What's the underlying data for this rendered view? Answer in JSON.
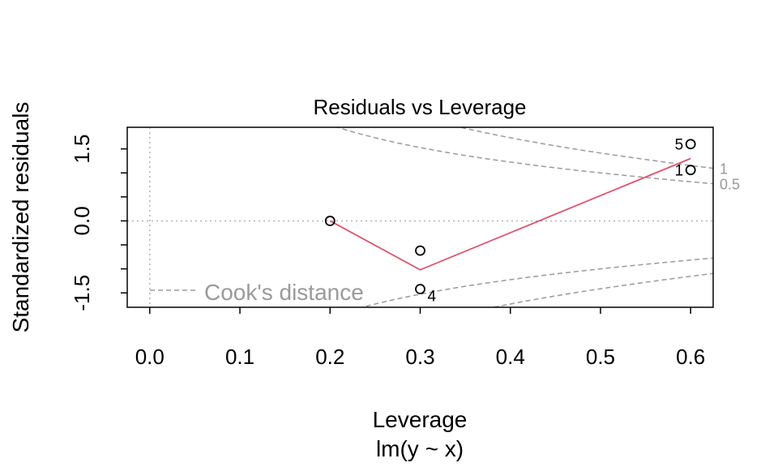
{
  "chart_data": {
    "type": "scatter",
    "title": "Residuals vs Leverage",
    "xlabel": "Leverage",
    "subtitle": "lm(y ~ x)",
    "ylabel": "Standardized residuals",
    "xlim": [
      -0.025,
      0.625
    ],
    "ylim": [
      -1.8,
      1.95
    ],
    "x_ticks": [
      "0.0",
      "0.1",
      "0.2",
      "0.3",
      "0.4",
      "0.5",
      "0.6"
    ],
    "x_tick_values": [
      0.0,
      0.1,
      0.2,
      0.3,
      0.4,
      0.5,
      0.6
    ],
    "y_ticks": [
      "-1.5",
      "0.0",
      "1.5"
    ],
    "y_tick_values": [
      -1.5,
      0.0,
      1.5
    ],
    "y_minor_ticks": [
      -1.0,
      -0.5,
      0.5,
      1.0
    ],
    "points": [
      {
        "x": 0.2,
        "y": 0.0,
        "label": ""
      },
      {
        "x": 0.3,
        "y": -0.62,
        "label": ""
      },
      {
        "x": 0.3,
        "y": -1.42,
        "label": "4"
      },
      {
        "x": 0.6,
        "y": 1.06,
        "label": "1"
      },
      {
        "x": 0.6,
        "y": 1.6,
        "label": "5"
      }
    ],
    "smoother": {
      "x": [
        0.2,
        0.3,
        0.6
      ],
      "y": [
        0.0,
        -1.02,
        1.3
      ],
      "color": "#DF536B"
    },
    "cooks_levels": [
      {
        "level": 0.5,
        "label": "0.5"
      },
      {
        "level": 1,
        "label": "1"
      }
    ],
    "n_params": 2,
    "legend": {
      "text": "Cook's distance",
      "position": "bottom-left"
    },
    "reference_lines": {
      "h": 0,
      "v": 0
    },
    "colors": {
      "points": "#000000",
      "smoother": "#DF536B",
      "cooks": "#9a9a9a",
      "reference": "#b4b4b4"
    }
  }
}
